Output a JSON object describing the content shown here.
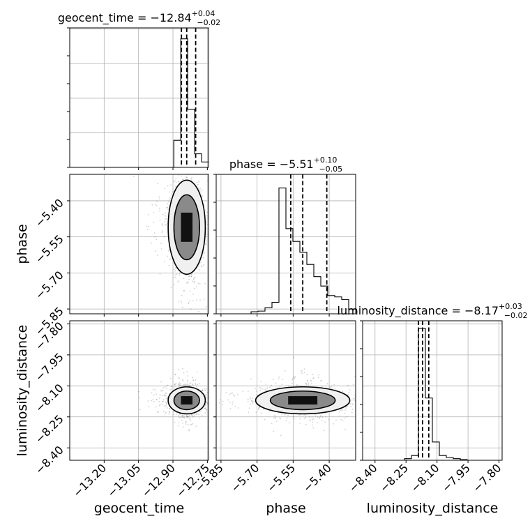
{
  "chart_data": {
    "type": "corner",
    "parameters": [
      "geocent_time",
      "phase",
      "luminosity_distance"
    ],
    "axis_labels": {
      "geocent_time": "geocent_time",
      "phase": "phase",
      "luminosity_distance": "luminosity_distance"
    },
    "ranges": {
      "geocent_time": [
        -13.35,
        -12.745
      ],
      "phase": [
        -5.87,
        -5.29
      ],
      "luminosity_distance": [
        -8.46,
        -7.785
      ]
    },
    "ticks": {
      "geocent_time": [
        -13.2,
        -13.05,
        -12.9,
        -12.75
      ],
      "phase": [
        -5.85,
        -5.7,
        -5.55,
        -5.4
      ],
      "luminosity_distance": [
        -8.4,
        -8.25,
        -8.1,
        -7.95,
        -7.8
      ]
    },
    "tick_labels": {
      "geocent_time": [
        "−13.20",
        "−13.05",
        "−12.90",
        "−12.75"
      ],
      "phase": [
        "−5.85",
        "−5.70",
        "−5.55",
        "−5.40"
      ],
      "luminosity_distance": [
        "−8.40",
        "−8.25",
        "−8.10",
        "−7.95",
        "−7.80"
      ]
    },
    "titles": [
      {
        "param": "geocent_time",
        "label": "geocent_time = ",
        "median": "−12.84",
        "plus": "+0.04",
        "minus": "−0.02"
      },
      {
        "param": "phase",
        "label": "phase = ",
        "median": "−5.51",
        "plus": "+0.10",
        "minus": "−0.05"
      },
      {
        "param": "luminosity_distance",
        "label": "luminosity_distance = ",
        "median": "−8.17",
        "plus": "+0.03",
        "minus": "−0.02"
      }
    ],
    "quantiles": {
      "geocent_time": [
        -12.863,
        -12.84,
        -12.801
      ],
      "phase": [
        -5.56,
        -5.51,
        -5.41
      ],
      "luminosity_distance": [
        -8.19,
        -8.17,
        -8.14
      ]
    },
    "histograms": {
      "geocent_time": {
        "edges_range": [
          -13.35,
          -12.745
        ],
        "bins": 20,
        "counts": [
          0,
          0,
          0,
          0,
          0,
          0,
          0,
          0,
          0,
          0,
          0,
          0,
          0,
          0,
          0,
          0.2,
          0.95,
          0.43,
          0.1,
          0.04
        ]
      },
      "phase": {
        "edges_range": [
          -5.87,
          -5.29
        ],
        "bins": 20,
        "counts": [
          0,
          0,
          0,
          0,
          0,
          0.015,
          0.02,
          0.045,
          0.085,
          0.93,
          0.63,
          0.535,
          0.455,
          0.365,
          0.275,
          0.205,
          0.135,
          0.125,
          0.105,
          0.035
        ]
      },
      "luminosity_distance": {
        "edges_range": [
          -8.46,
          -7.785
        ],
        "bins": 20,
        "counts": [
          0,
          0,
          0,
          0,
          0,
          0,
          0.012,
          0.035,
          0.975,
          0.46,
          0.135,
          0.035,
          0.02,
          0.012,
          0.005,
          0,
          0,
          0,
          0,
          0
        ]
      }
    },
    "grid": true
  }
}
